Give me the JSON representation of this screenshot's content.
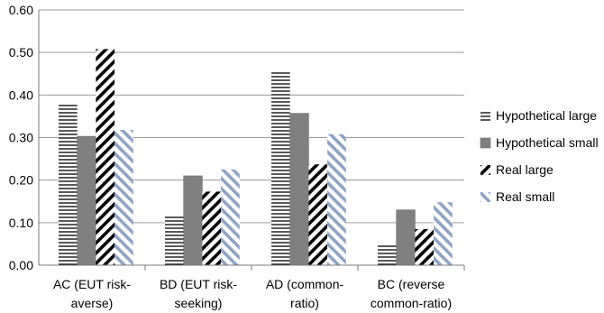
{
  "chart_data": {
    "type": "bar",
    "title": "",
    "xlabel": "",
    "ylabel": "",
    "ylim": [
      0,
      0.6
    ],
    "yticks": [
      "0.00",
      "0.10",
      "0.20",
      "0.30",
      "0.40",
      "0.50",
      "0.60"
    ],
    "grid": true,
    "legend_position": "right",
    "categories": [
      [
        "AC (EUT risk-",
        "averse)"
      ],
      [
        "BD (EUT risk-",
        "seeking)"
      ],
      [
        "AD (common-",
        "ratio)"
      ],
      [
        "BC (reverse",
        "common-ratio)"
      ]
    ],
    "series": [
      {
        "name": "Hypothetical large",
        "pattern": "horizontal-lines",
        "color": "#000000",
        "values": [
          0.38,
          0.117,
          0.457,
          0.05
        ]
      },
      {
        "name": "Hypothetical small",
        "pattern": "solid",
        "color": "#808080",
        "values": [
          0.303,
          0.21,
          0.357,
          0.13
        ]
      },
      {
        "name": "Real large",
        "pattern": "diagonal-dark",
        "color": "#000000",
        "values": [
          0.508,
          0.173,
          0.237,
          0.085
        ]
      },
      {
        "name": "Real small",
        "pattern": "diagonal-light",
        "color": "#8fa3c4",
        "values": [
          0.318,
          0.225,
          0.308,
          0.148
        ]
      }
    ]
  }
}
